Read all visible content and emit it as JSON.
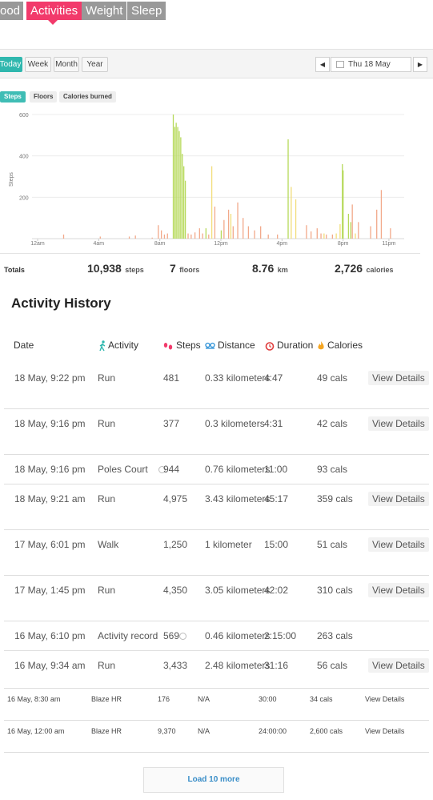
{
  "nav_tabs": [
    {
      "label": "ood",
      "active": false
    },
    {
      "label": "Activities",
      "active": true
    },
    {
      "label": "Weight",
      "active": false
    },
    {
      "label": "Sleep",
      "active": false
    }
  ],
  "period": {
    "buttons": [
      "Today",
      "Week",
      "Month",
      "Year"
    ],
    "active": "Today",
    "date": "Thu 18 May",
    "prev_icon": "triangle-left",
    "next_icon": "triangle-right"
  },
  "metric_tabs": {
    "items": [
      "Steps",
      "Floors",
      "Calories burned"
    ],
    "active": "Steps"
  },
  "colors": {
    "accent": "#2fb7ae",
    "active_tab": "#f23a6b",
    "green_bar": "#b6d95a",
    "orange_bar": "#f2a98a",
    "yellow_bar": "#f2dd7a",
    "link": "#3a8ec8"
  },
  "chart_data": {
    "type": "bar",
    "ylabel": "Steps",
    "yticks": [
      "600",
      "400",
      "200"
    ],
    "ylim": [
      0,
      600
    ],
    "xlim": [
      0,
      24
    ],
    "xticks": [
      "12am",
      "4am",
      "8am",
      "12pm",
      "4pm",
      "8pm",
      "11pm"
    ],
    "xtick_hours": [
      0,
      4,
      8,
      12,
      16,
      20,
      23
    ],
    "grid": true,
    "series": [
      {
        "color": "green",
        "x": [
          8.88,
          8.98,
          9.07,
          9.17,
          9.27,
          9.37,
          9.47,
          9.57,
          9.67,
          11.02,
          12.02,
          16.4,
          19.95,
          20.0,
          20.35,
          20.5
        ],
        "values": [
          600,
          540,
          560,
          540,
          520,
          490,
          410,
          350,
          280,
          50,
          40,
          480,
          360,
          330,
          120,
          80
        ]
      },
      {
        "color": "orange",
        "x": [
          1.7,
          4.1,
          6.0,
          6.4,
          7.5,
          7.9,
          8.1,
          8.3,
          8.5,
          9.85,
          10.05,
          10.3,
          10.6,
          10.8,
          11.2,
          11.6,
          12.2,
          12.5,
          12.8,
          13.1,
          13.45,
          13.8,
          14.2,
          14.6,
          15.1,
          15.7,
          17.6,
          17.9,
          18.3,
          18.55,
          18.9,
          19.3,
          20.6,
          21.0,
          21.8,
          22.2,
          22.5,
          23.1
        ],
        "values": [
          20,
          10,
          10,
          15,
          5,
          65,
          40,
          20,
          25,
          25,
          20,
          30,
          50,
          25,
          20,
          155,
          90,
          140,
          60,
          175,
          100,
          60,
          40,
          60,
          20,
          20,
          65,
          35,
          50,
          25,
          20,
          20,
          165,
          80,
          60,
          140,
          235,
          50
        ]
      },
      {
        "color": "yellow",
        "x": [
          11.4,
          12.65,
          16.6,
          16.9,
          18.75,
          19.55,
          19.8,
          20.8
        ],
        "values": [
          350,
          120,
          250,
          190,
          25,
          25,
          70,
          25
        ]
      }
    ]
  },
  "totals": {
    "label": "Totals",
    "steps": {
      "value": "10,938",
      "unit": "steps"
    },
    "floors": {
      "value": "7",
      "unit": "floors"
    },
    "distance": {
      "value": "8.76",
      "unit": "km"
    },
    "calories": {
      "value": "2,726",
      "unit": "calories"
    }
  },
  "history": {
    "title": "Activity History",
    "headers": {
      "date": "Date",
      "activity": "Activity",
      "steps": "Steps",
      "distance": "Distance",
      "duration": "Duration",
      "calories": "Calories"
    },
    "rows": [
      {
        "date": "18 May, 9:22 pm",
        "activity": "Run",
        "steps": "481",
        "distance": "0.33 kilometers",
        "duration": "4:47",
        "calories": "49 cals",
        "action": "View Details",
        "manual": false
      },
      {
        "date": "18 May, 9:16 pm",
        "activity": "Run",
        "steps": "377",
        "distance": "0.3 kilometers",
        "duration": "4:31",
        "calories": "42 cals",
        "action": "View Details",
        "manual": false
      },
      {
        "date": "18 May, 9:16 pm",
        "activity": "Poles Court",
        "steps": "944",
        "distance": "0.76 kilometers",
        "duration": "11:00",
        "calories": "93 cals",
        "action": "",
        "manual": true
      },
      {
        "date": "18 May, 9:21 am",
        "activity": "Run",
        "steps": "4,975",
        "distance": "3.43 kilometers",
        "duration": "45:17",
        "calories": "359 cals",
        "action": "View Details",
        "manual": false
      },
      {
        "date": "17 May, 6:01 pm",
        "activity": "Walk",
        "steps": "1,250",
        "distance": "1 kilometer",
        "duration": "15:00",
        "calories": "51 cals",
        "action": "View Details",
        "manual": false
      },
      {
        "date": "17 May, 1:45 pm",
        "activity": "Run",
        "steps": "4,350",
        "distance": "3.05 kilometers",
        "duration": "42:02",
        "calories": "310 cals",
        "action": "View Details",
        "manual": false
      },
      {
        "date": "16 May, 6:10 pm",
        "activity": "Activity record",
        "steps": "569",
        "distance": "0.46 kilometers",
        "duration": "2:15:00",
        "calories": "263 cals",
        "action": "",
        "manual": true
      },
      {
        "date": "16 May, 9:34 am",
        "activity": "Run",
        "steps": "3,433",
        "distance": "2.48 kilometers",
        "duration": "31:16",
        "calories": "56 cals",
        "action": "View Details",
        "manual": false
      },
      {
        "date": "16 May, 8:30 am",
        "activity": "Blaze HR",
        "steps": "176",
        "distance": "N/A",
        "duration": "30:00",
        "calories": "34 cals",
        "action": "View Details",
        "manual": false
      },
      {
        "date": "16 May, 12:00 am",
        "activity": "Blaze HR",
        "steps": "9,370",
        "distance": "N/A",
        "duration": "24:00:00",
        "calories": "2,600 cals",
        "action": "View Details",
        "manual": false
      }
    ]
  },
  "load_more": "Load 10 more"
}
